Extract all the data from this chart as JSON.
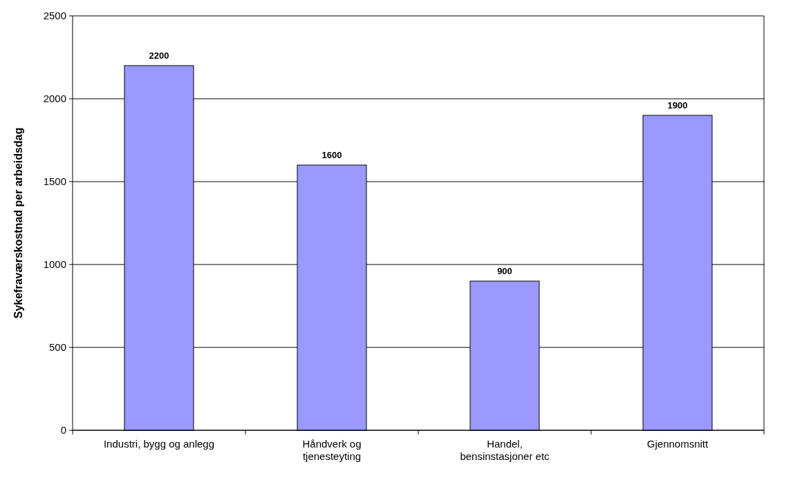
{
  "chart_data": {
    "type": "bar",
    "ylabel": "Sykefraværskostnad per arbeidsdag",
    "categories": [
      "Industri, bygg og anlegg",
      "Håndverk og tjenesteyting",
      "Handel, bensinstasjoner etc",
      "Gjennomsnitt"
    ],
    "values": [
      2200,
      1600,
      900,
      1900
    ],
    "color": "#9999ff",
    "ylim": [
      0,
      2500
    ],
    "yticks": [
      0,
      500,
      1000,
      1500,
      2000,
      2500
    ],
    "grid": "y",
    "data_labels": true
  }
}
